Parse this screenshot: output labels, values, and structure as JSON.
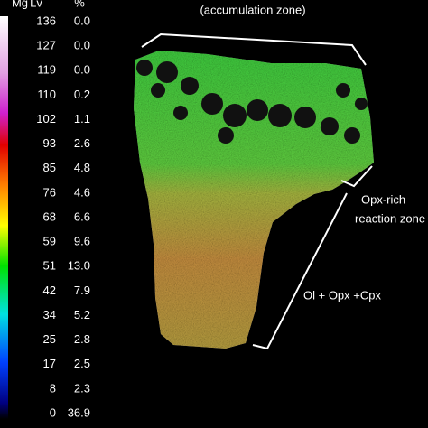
{
  "legend": {
    "headers": [
      "Mg",
      "Lv",
      "%"
    ],
    "rows": [
      {
        "level": 136,
        "percent": "0.0"
      },
      {
        "level": 127,
        "percent": "0.0"
      },
      {
        "level": 119,
        "percent": "0.0"
      },
      {
        "level": 110,
        "percent": "0.2"
      },
      {
        "level": 102,
        "percent": "1.1"
      },
      {
        "level": 93,
        "percent": "2.6"
      },
      {
        "level": 85,
        "percent": "4.8"
      },
      {
        "level": 76,
        "percent": "4.6"
      },
      {
        "level": 68,
        "percent": "6.6"
      },
      {
        "level": 59,
        "percent": "9.6"
      },
      {
        "level": 51,
        "percent": "13.0"
      },
      {
        "level": 42,
        "percent": "7.9"
      },
      {
        "level": 34,
        "percent": "5.2"
      },
      {
        "level": 25,
        "percent": "2.8"
      },
      {
        "level": 17,
        "percent": "2.5"
      },
      {
        "level": 8,
        "percent": "2.3"
      },
      {
        "level": 0,
        "percent": "36.9"
      }
    ]
  },
  "annotations": {
    "top": "(accumulation zone)",
    "middle_1": "Opx-rich",
    "middle_2": "reaction zone",
    "bottom": "Ol + Opx +Cpx"
  }
}
